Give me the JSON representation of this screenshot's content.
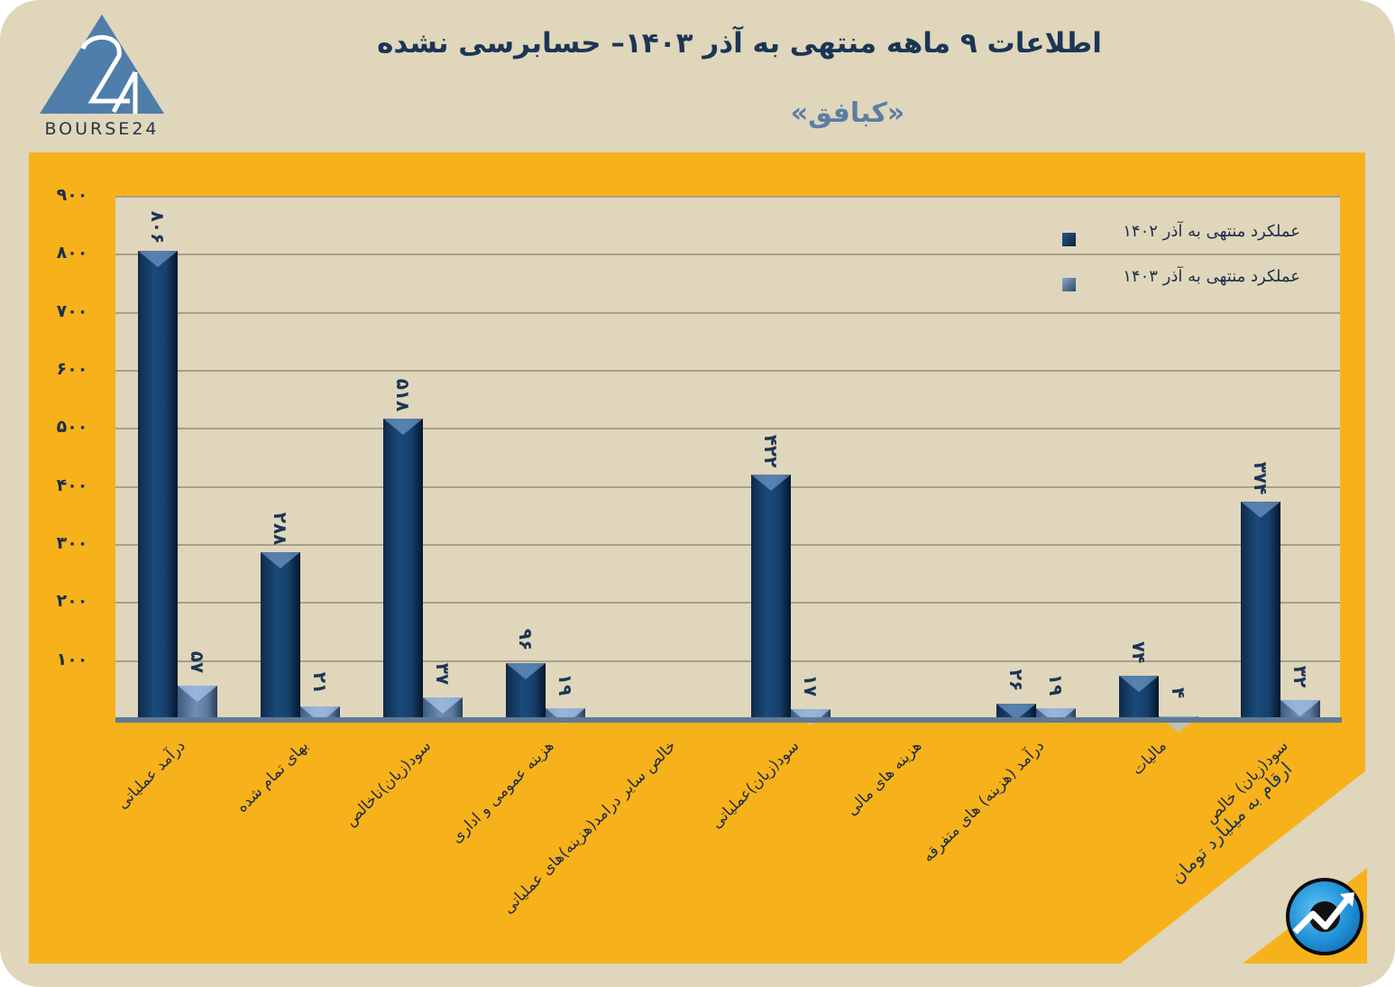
{
  "header": {
    "title": "اطلاعات ۹ ماهه منتهی به آذر  ۱۴۰۳– حسابرسی نشده",
    "subtitle": "«کبافق»",
    "logo_text": "BOURSE24",
    "logo_icon": "bourse24-triangle-logo"
  },
  "legend": {
    "items": [
      {
        "label": "عملکرد منتهی به آذر ۱۴۰۲",
        "color": "#163b63"
      },
      {
        "label": "عملکرد منتهی به آذر ۱۴۰۳",
        "color": "#4f6f96"
      }
    ]
  },
  "unit_note": "ارقام به میلیارد تومان",
  "badge_icon": "trend-arrow-icon",
  "colors": {
    "card_bg": "#e0d6bb",
    "panel_bg": "#f7b21b",
    "plot_bg": "#e0d6bb",
    "series_1402": "#163b63",
    "series_1403": "#4f6f96",
    "title": "#1b3556",
    "subtitle": "#5b7ea3"
  },
  "y_ticks": [
    "۹۰۰",
    "۸۰۰",
    "۷۰۰",
    "۶۰۰",
    "۵۰۰",
    "۴۰۰",
    "۳۰۰",
    "۲۰۰",
    "۱۰۰"
  ],
  "bar_labels": {
    "s1402": [
      "۸۰۶",
      "۲۸۸",
      "۵۱۸",
      "۹۶",
      "",
      "۴۲۲",
      "",
      "۲۶",
      "۷۴",
      "۳۷۴"
    ],
    "s1403": [
      "۵۷",
      "۲۱",
      "۳۷",
      "۱۹",
      "",
      "۱۷",
      "",
      "۱۹",
      "۴",
      "۳۲"
    ]
  },
  "chart_data": {
    "type": "bar",
    "title": "اطلاعات ۹ ماهه منتهی به آذر ۱۴۰۳– حسابرسی نشده",
    "subtitle": "«کبافق»",
    "xlabel": "",
    "ylabel": "ارقام به میلیارد تومان",
    "ylim": [
      0,
      900
    ],
    "y_tick_values": [
      100,
      200,
      300,
      400,
      500,
      600,
      700,
      800,
      900
    ],
    "grid": true,
    "legend_position": "top-right",
    "categories": [
      "درآمد عملیاتی",
      "بهای تمام شده",
      "سود(زیان)ناخالص",
      "هزینه عمومی و اداری",
      "خالص سایر درامد(هزینه)های عملیاتی",
      "سود(زیان)عملیاتی",
      "هزینه های مالی",
      "درآمد (هزینه) های متفرقه",
      "مالیات",
      "سود(زیان) خالص"
    ],
    "series": [
      {
        "name": "عملکرد منتهی به آذر ۱۴۰۲",
        "values": [
          806,
          288,
          518,
          96,
          0,
          422,
          0,
          26,
          74,
          374
        ]
      },
      {
        "name": "عملکرد منتهی به آذر ۱۴۰۳",
        "values": [
          57,
          21,
          37,
          19,
          0,
          17,
          0,
          19,
          4,
          32
        ]
      }
    ]
  }
}
